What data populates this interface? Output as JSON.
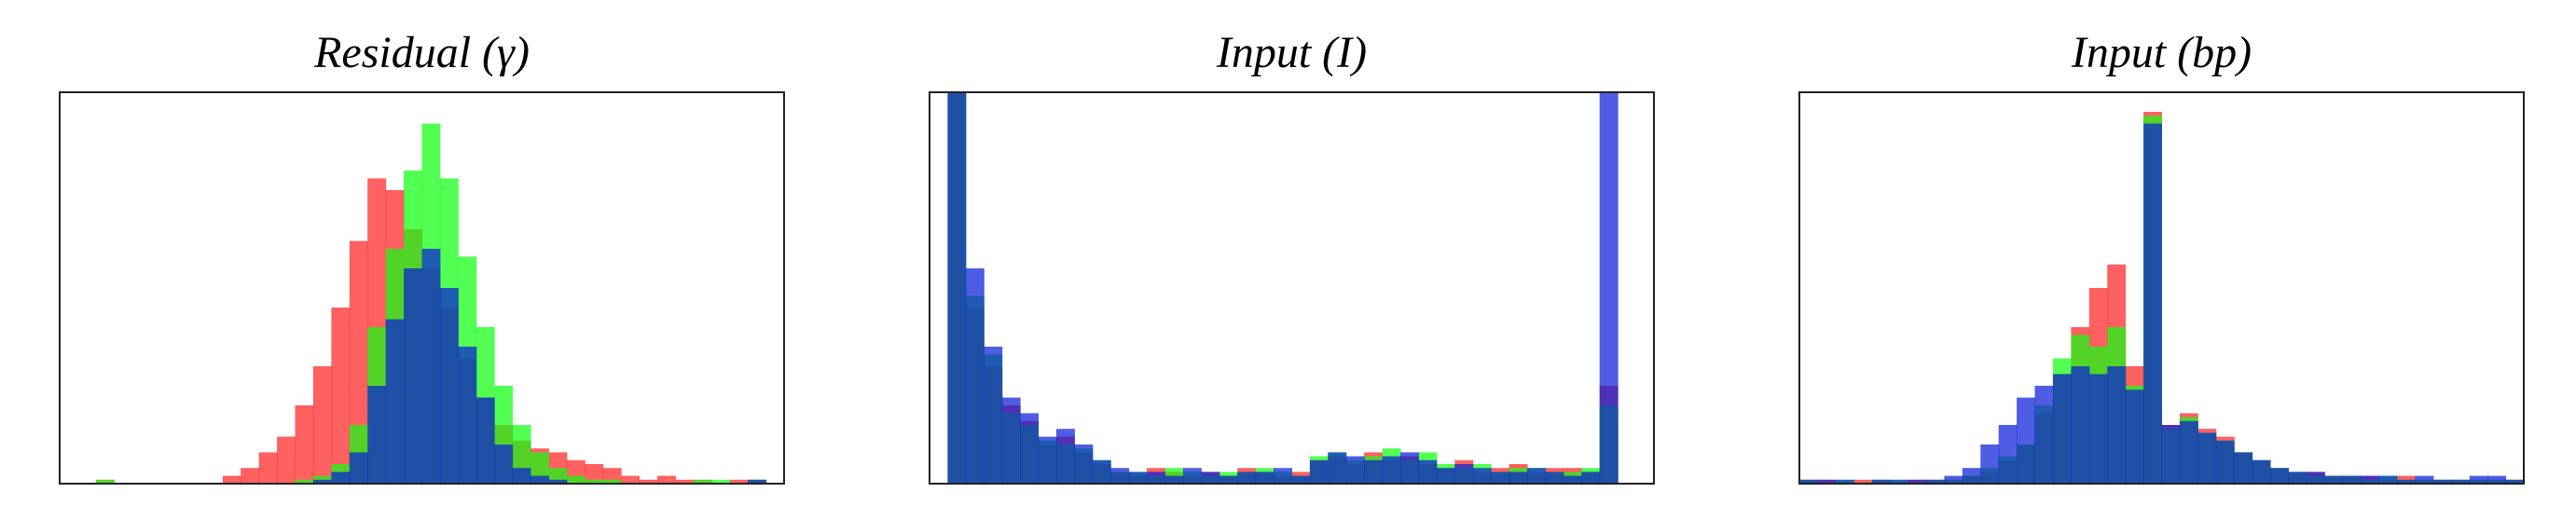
{
  "chart_data": [
    {
      "type": "histogram",
      "title": "Residual (γ)",
      "bins": [
        0,
        1,
        2,
        3,
        4,
        5,
        6,
        7,
        8,
        9,
        10,
        11,
        12,
        13,
        14,
        15,
        16,
        17,
        18,
        19,
        20,
        21,
        22,
        23,
        24,
        25,
        26,
        27,
        28,
        29,
        30,
        31,
        32,
        33,
        34,
        35,
        36,
        37,
        38,
        39,
        40
      ],
      "xlim": [
        0,
        40
      ],
      "ylim": [
        0,
        100
      ],
      "series": [
        {
          "color": "#ff2222",
          "values": [
            0,
            0,
            1,
            0,
            0,
            0,
            0,
            0,
            0,
            2,
            4,
            8,
            12,
            20,
            30,
            45,
            62,
            78,
            75,
            65,
            55,
            45,
            32,
            22,
            15,
            11,
            9,
            8,
            6,
            5,
            4,
            2,
            1,
            2,
            1,
            1,
            0,
            1,
            1,
            0
          ]
        },
        {
          "color": "#11ff11",
          "values": [
            0,
            0,
            1,
            0,
            0,
            0,
            0,
            0,
            0,
            0,
            0,
            0,
            0,
            1,
            2,
            5,
            15,
            40,
            60,
            80,
            92,
            78,
            58,
            40,
            25,
            15,
            8,
            4,
            2,
            1,
            1,
            0,
            0,
            0,
            0,
            1,
            1,
            0,
            1,
            0
          ]
        },
        {
          "color": "#0a1ed8",
          "values": [
            0,
            0,
            0,
            0,
            0,
            0,
            0,
            0,
            0,
            0,
            0,
            0,
            0,
            0,
            1,
            3,
            8,
            25,
            42,
            55,
            60,
            50,
            35,
            22,
            10,
            4,
            2,
            1,
            0,
            0,
            0,
            0,
            0,
            0,
            0,
            0,
            0,
            0,
            1,
            0
          ]
        }
      ]
    },
    {
      "type": "histogram",
      "title": "Input (I)",
      "bins": [
        0,
        1,
        2,
        3,
        4,
        5,
        6,
        7,
        8,
        9,
        10,
        11,
        12,
        13,
        14,
        15,
        16,
        17,
        18,
        19,
        20,
        21,
        22,
        23,
        24,
        25,
        26,
        27,
        28,
        29,
        30,
        31,
        32,
        33,
        34,
        35,
        36,
        37,
        38,
        39,
        40
      ],
      "xlim": [
        0,
        40
      ],
      "ylim": [
        0,
        100
      ],
      "series": [
        {
          "color": "#ff2222",
          "values": [
            0,
            100,
            45,
            30,
            20,
            16,
            10,
            12,
            8,
            5,
            3,
            2,
            4,
            3,
            2,
            3,
            2,
            4,
            3,
            2,
            3,
            6,
            7,
            5,
            8,
            6,
            7,
            5,
            4,
            6,
            3,
            4,
            5,
            3,
            4,
            4,
            3,
            25,
            0,
            0
          ]
        },
        {
          "color": "#11ff11",
          "values": [
            0,
            100,
            48,
            33,
            18,
            15,
            11,
            10,
            9,
            6,
            3,
            3,
            2,
            4,
            3,
            2,
            3,
            3,
            4,
            3,
            2,
            7,
            8,
            6,
            7,
            9,
            6,
            8,
            5,
            4,
            5,
            3,
            4,
            4,
            3,
            3,
            4,
            20,
            0,
            0
          ]
        },
        {
          "color": "#0a1ed8",
          "values": [
            0,
            100,
            55,
            35,
            22,
            18,
            12,
            14,
            10,
            6,
            4,
            3,
            3,
            2,
            4,
            3,
            2,
            3,
            3,
            4,
            2,
            6,
            8,
            7,
            6,
            7,
            8,
            6,
            4,
            5,
            4,
            3,
            3,
            4,
            3,
            2,
            3,
            100,
            0,
            0
          ]
        }
      ]
    },
    {
      "type": "histogram",
      "title": "Input (bp)",
      "bins": [
        0,
        1,
        2,
        3,
        4,
        5,
        6,
        7,
        8,
        9,
        10,
        11,
        12,
        13,
        14,
        15,
        16,
        17,
        18,
        19,
        20,
        21,
        22,
        23,
        24,
        25,
        26,
        27,
        28,
        29,
        30,
        31,
        32,
        33,
        34,
        35,
        36,
        37,
        38,
        39,
        40
      ],
      "xlim": [
        0,
        40
      ],
      "ylim": [
        0,
        100
      ],
      "series": [
        {
          "color": "#ff2222",
          "values": [
            1,
            1,
            0,
            1,
            1,
            0,
            1,
            1,
            1,
            2,
            3,
            6,
            10,
            18,
            28,
            40,
            50,
            56,
            30,
            95,
            15,
            18,
            14,
            12,
            8,
            6,
            4,
            3,
            3,
            2,
            2,
            2,
            1,
            2,
            1,
            1,
            1,
            1,
            1,
            1
          ]
        },
        {
          "color": "#11ff11",
          "values": [
            1,
            0,
            1,
            0,
            1,
            1,
            0,
            1,
            1,
            2,
            4,
            7,
            10,
            20,
            32,
            38,
            35,
            40,
            25,
            94,
            14,
            17,
            13,
            11,
            8,
            6,
            4,
            3,
            2,
            2,
            2,
            1,
            2,
            1,
            1,
            1,
            1,
            1,
            1,
            1
          ]
        },
        {
          "color": "#0a1ed8",
          "values": [
            1,
            1,
            1,
            0,
            1,
            1,
            1,
            1,
            2,
            4,
            10,
            15,
            22,
            25,
            28,
            30,
            28,
            30,
            24,
            92,
            15,
            16,
            13,
            11,
            8,
            6,
            4,
            3,
            3,
            2,
            2,
            2,
            2,
            1,
            2,
            1,
            1,
            2,
            2,
            1
          ]
        }
      ]
    }
  ]
}
